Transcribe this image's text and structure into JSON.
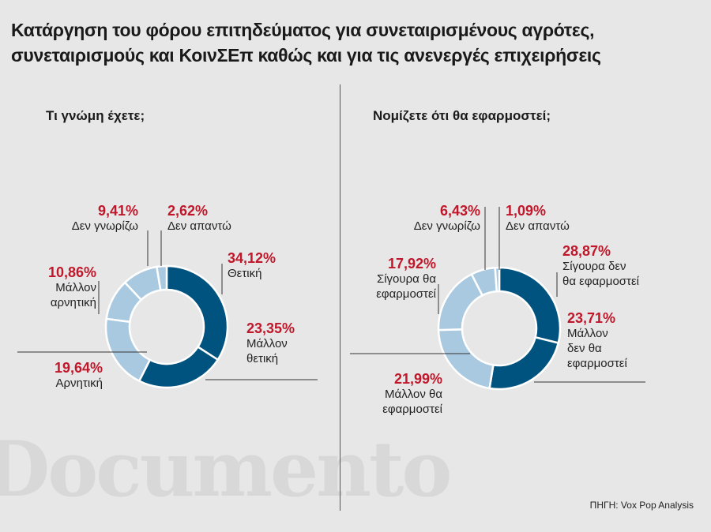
{
  "title_lines": [
    "Κατάργηση του φόρου επιτηδεύματος για συνεταιρισμένους αγρότες,",
    "συνεταιρισμούς και ΚοινΣΕπ καθώς και για τις ανενεργές επιχειρήσεις"
  ],
  "watermark": "Documento",
  "source": "ΠΗΓΗ: Vox Pop Analysis",
  "colors": {
    "dark": "#00527f",
    "light": "#a9c9e0",
    "label": "#c0172a",
    "background": "#e7e7e7"
  },
  "chart_data": [
    {
      "type": "donut",
      "title": "Τι γνώμη έχετε;",
      "slices": [
        {
          "value": 34.12,
          "pct": "34,12%",
          "label": [
            "Θετική"
          ],
          "color": "#00527f"
        },
        {
          "value": 23.35,
          "pct": "23,35%",
          "label": [
            "Μάλλον",
            "θετική"
          ],
          "color": "#00527f"
        },
        {
          "value": 19.64,
          "pct": "19,64%",
          "label": [
            "Αρνητική"
          ],
          "color": "#a9c9e0"
        },
        {
          "value": 10.86,
          "pct": "10,86%",
          "label": [
            "Μάλλον",
            "αρνητική"
          ],
          "color": "#a9c9e0"
        },
        {
          "value": 9.41,
          "pct": "9,41%",
          "label": [
            "Δεν γνωρίζω"
          ],
          "color": "#a9c9e0"
        },
        {
          "value": 2.62,
          "pct": "2,62%",
          "label": [
            "Δεν απαντώ"
          ],
          "color": "#a9c9e0"
        }
      ]
    },
    {
      "type": "donut",
      "title": "Νομίζετε ότι θα εφαρμοστεί;",
      "slices": [
        {
          "value": 28.87,
          "pct": "28,87%",
          "label": [
            "Σίγουρα δεν",
            "θα εφαρμοστεί"
          ],
          "color": "#00527f"
        },
        {
          "value": 23.71,
          "pct": "23,71%",
          "label": [
            "Μάλλον",
            "δεν θα",
            "εφαρμοστεί"
          ],
          "color": "#00527f"
        },
        {
          "value": 21.99,
          "pct": "21,99%",
          "label": [
            "Μάλλον θα",
            "εφαρμοστεί"
          ],
          "color": "#a9c9e0"
        },
        {
          "value": 17.92,
          "pct": "17,92%",
          "label": [
            "Σίγουρα θα",
            "εφαρμοστεί"
          ],
          "color": "#a9c9e0"
        },
        {
          "value": 6.43,
          "pct": "6,43%",
          "label": [
            "Δεν γνωρίζω"
          ],
          "color": "#a9c9e0"
        },
        {
          "value": 1.09,
          "pct": "1,09%",
          "label": [
            "Δεν απαντώ"
          ],
          "color": "#a9c9e0"
        }
      ]
    }
  ]
}
